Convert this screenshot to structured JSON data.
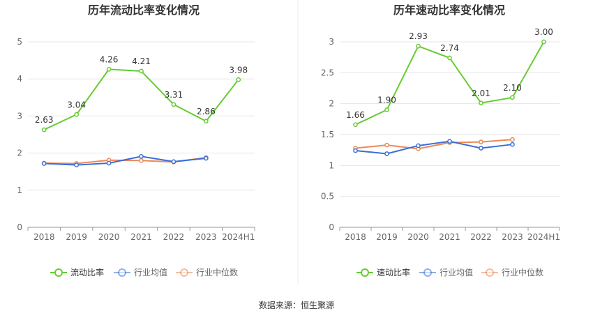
{
  "source_label": "数据来源：恒生聚源",
  "colors": {
    "main": "#66cc33",
    "avg": "#3a6fd8",
    "median": "#ee8855",
    "axis": "#666666",
    "grid": "#e6e6e6",
    "text": "#333333"
  },
  "chart_data": [
    {
      "type": "line",
      "title": "历年流动比率变化情况",
      "categories": [
        "2018",
        "2019",
        "2020",
        "2021",
        "2022",
        "2023",
        "2024H1"
      ],
      "ylim": [
        0,
        5
      ],
      "yticks": [
        "0",
        "1",
        "2",
        "3",
        "4",
        "5"
      ],
      "grid": true,
      "legend_position": "bottom",
      "series": [
        {
          "name": "流动比率",
          "values": [
            2.63,
            3.04,
            4.26,
            4.21,
            3.31,
            2.86,
            3.98
          ],
          "labels": [
            "2.63",
            "3.04",
            "4.26",
            "4.21",
            "3.31",
            "2.86",
            "3.98"
          ]
        },
        {
          "name": "行业均值",
          "values": [
            1.72,
            1.68,
            1.73,
            1.91,
            1.77,
            1.86,
            null
          ]
        },
        {
          "name": "行业中位数",
          "values": [
            1.73,
            1.72,
            1.81,
            1.8,
            1.76,
            1.88,
            null
          ]
        }
      ]
    },
    {
      "type": "line",
      "title": "历年速动比率变化情况",
      "categories": [
        "2018",
        "2019",
        "2020",
        "2021",
        "2022",
        "2023",
        "2024H1"
      ],
      "ylim": [
        0,
        3
      ],
      "yticks": [
        "0",
        "0.5",
        "1",
        "1.5",
        "2",
        "2.5",
        "3"
      ],
      "grid": true,
      "legend_position": "bottom",
      "series": [
        {
          "name": "速动比率",
          "values": [
            1.66,
            1.9,
            2.93,
            2.74,
            2.01,
            2.1,
            3.0
          ],
          "labels": [
            "1.66",
            "1.90",
            "2.93",
            "2.74",
            "2.01",
            "2.10",
            "3.00"
          ]
        },
        {
          "name": "行业均值",
          "values": [
            1.24,
            1.19,
            1.32,
            1.39,
            1.28,
            1.34,
            null
          ]
        },
        {
          "name": "行业中位数",
          "values": [
            1.28,
            1.33,
            1.27,
            1.37,
            1.38,
            1.42,
            null
          ]
        }
      ]
    }
  ]
}
